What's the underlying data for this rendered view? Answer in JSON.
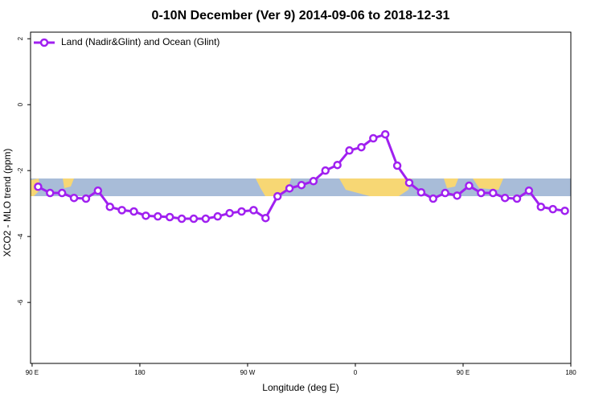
{
  "chart_data": {
    "type": "line",
    "title": "0-10N December (Ver 9)   2014-09-06 to 2018-12-31",
    "x_label": "Longitude (deg E)",
    "y_label": "XCO2 - MLO trend (ppm)",
    "x": [
      95,
      105,
      115,
      125,
      135,
      145,
      155,
      165,
      175,
      185,
      195,
      205,
      215,
      225,
      235,
      245,
      255,
      265,
      275,
      285,
      295,
      305,
      315,
      325,
      335,
      345,
      355,
      365,
      375,
      385,
      395,
      405,
      415,
      425,
      435,
      445,
      455,
      465,
      475,
      485,
      495,
      505,
      515,
      525,
      535
    ],
    "series": [
      {
        "name": "Land (Nadir&Glint) and Ocean (Glint)",
        "color": "#a020f0",
        "values": [
          -2.49,
          -2.68,
          -2.68,
          -2.83,
          -2.85,
          -2.61,
          -3.1,
          -3.2,
          -3.24,
          -3.37,
          -3.39,
          -3.41,
          -3.46,
          -3.46,
          -3.46,
          -3.39,
          -3.29,
          -3.24,
          -3.2,
          -3.44,
          -2.78,
          -2.54,
          -2.44,
          -2.32,
          -2.0,
          -1.83,
          -1.39,
          -1.29,
          -1.02,
          -0.9,
          -1.85,
          -2.37,
          -2.66,
          -2.85,
          -2.68,
          -2.76,
          -2.46,
          -2.68,
          -2.68,
          -2.83,
          -2.85,
          -2.61,
          -3.1,
          -3.17,
          -3.22
        ]
      }
    ],
    "xlim": [
      88.7,
      540
    ],
    "xticks": [
      {
        "value": 90,
        "label": "90 E"
      },
      180,
      {
        "value": 270,
        "label": "90 W"
      },
      {
        "value": 360,
        "label": "0"
      },
      {
        "value": 450,
        "label": "90 E"
      },
      {
        "value": 540,
        "label": "180"
      }
    ],
    "ylim": [
      -7.85,
      2.2
    ],
    "yticks": [
      -6,
      -4,
      -2,
      0,
      2
    ],
    "legend": "top-left"
  }
}
